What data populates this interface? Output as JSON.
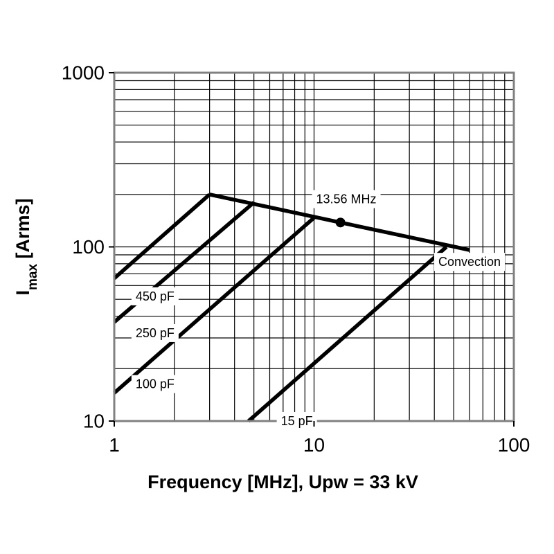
{
  "chart_data": {
    "type": "line",
    "xscale": "log",
    "yscale": "log",
    "xlim": [
      1,
      100
    ],
    "ylim": [
      10,
      1000
    ],
    "grid": true,
    "xlabel": "Frequency [MHz], Upw = 33 kV",
    "ylabel": {
      "main": "I",
      "sub": "max",
      "rest": " [Arms]"
    },
    "x_ticks": [
      1,
      10,
      100
    ],
    "x_tick_labels": [
      "1",
      "10",
      "100"
    ],
    "y_ticks": [
      10,
      100,
      1000
    ],
    "y_tick_labels": [
      "10",
      "100",
      "1000"
    ],
    "series": [
      {
        "name": "Convection",
        "points": [
          [
            3,
            200
          ],
          [
            13.56,
            138
          ],
          [
            60,
            96
          ]
        ]
      },
      {
        "name": "450 pF",
        "points": [
          [
            1,
            66
          ],
          [
            3,
            200
          ]
        ]
      },
      {
        "name": "250 pF",
        "points": [
          [
            1,
            37
          ],
          [
            5,
            180
          ]
        ]
      },
      {
        "name": "100 pF",
        "points": [
          [
            1,
            14.5
          ],
          [
            10,
            147
          ]
        ]
      },
      {
        "name": "15 pF",
        "points": [
          [
            4.7,
            10
          ],
          [
            46,
            100
          ]
        ]
      }
    ],
    "marker": {
      "x": 13.56,
      "y": 138,
      "label": "13.56 MHz"
    },
    "annotations": [
      {
        "text": "450 pF",
        "x": 1.6,
        "y": 52
      },
      {
        "text": "250 pF",
        "x": 1.6,
        "y": 32
      },
      {
        "text": "100 pF",
        "x": 1.6,
        "y": 16.3
      },
      {
        "text": "15 pF",
        "x": 8.2,
        "y": 10
      },
      {
        "text": "Convection",
        "x": 60,
        "y": 82
      },
      {
        "text": "13.56 MHz",
        "x": 14.5,
        "y": 188
      }
    ],
    "colors": {
      "line": "#000000",
      "grid": "#000000",
      "frame": "#808080",
      "label_bg": "#ffffff"
    }
  }
}
